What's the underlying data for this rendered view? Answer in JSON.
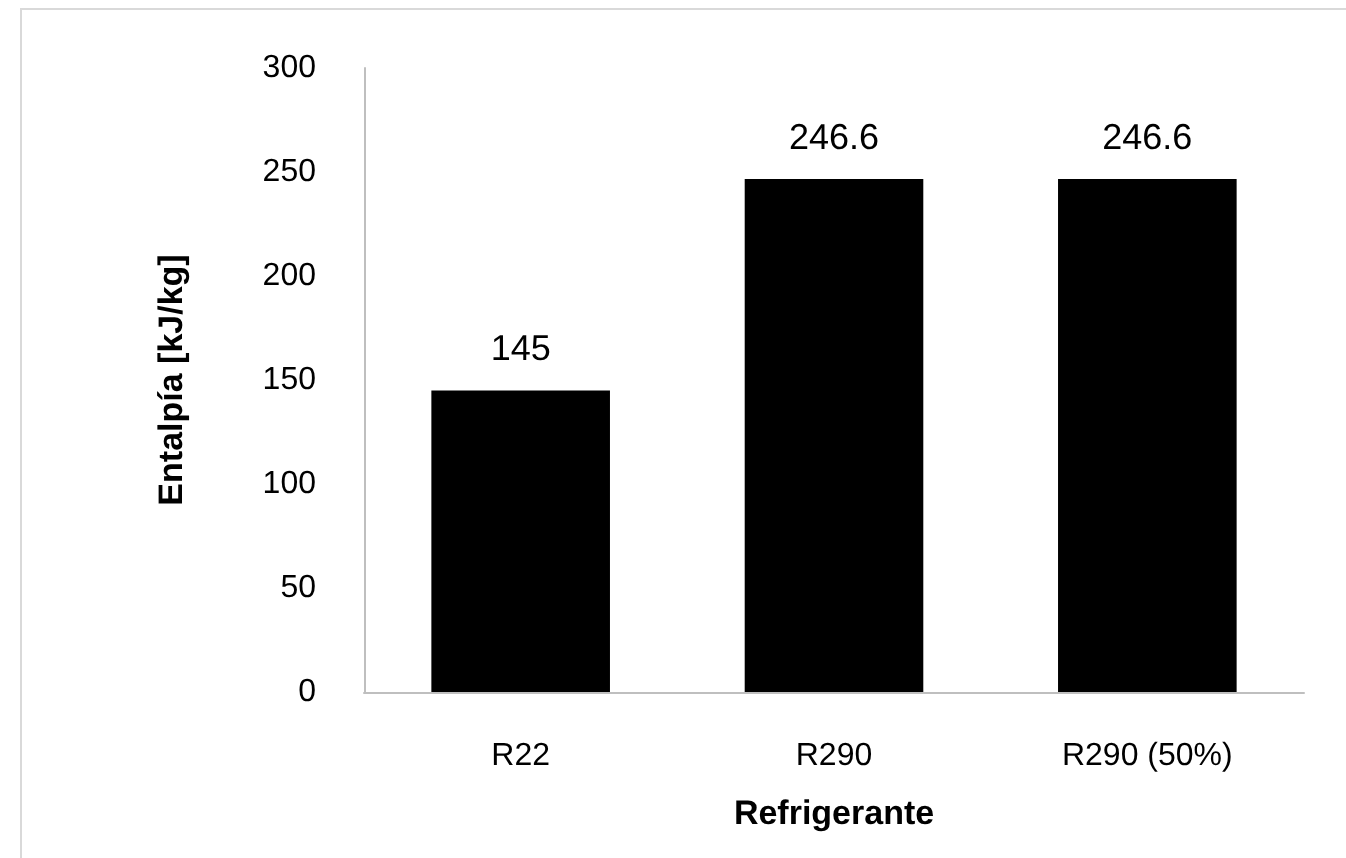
{
  "chart_data": {
    "type": "bar",
    "xlabel": "Refrigerante",
    "ylabel": "Entalpía [kJ/kg]",
    "categories": [
      "R22",
      "R290",
      "R290 (50%)"
    ],
    "values": [
      145,
      246.6,
      246.6
    ],
    "color": "#000000",
    "ylim": [
      0,
      300
    ],
    "yticks": [
      0,
      50,
      100,
      150,
      200,
      250,
      300
    ],
    "data_labels": true
  }
}
